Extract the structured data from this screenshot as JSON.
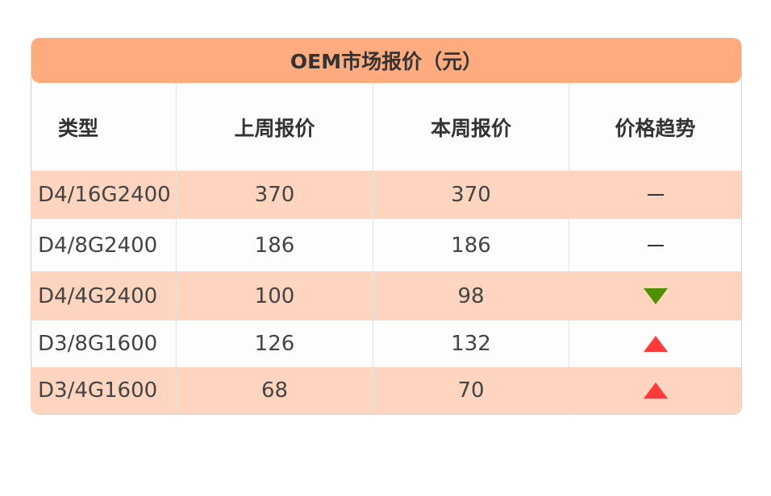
{
  "table": {
    "title": "OEM市场报价（元）",
    "headers": [
      "类型",
      "上周报价",
      "本周报价",
      "价格趋势"
    ],
    "rows": [
      {
        "type": "D4/16G2400",
        "last_week": "370",
        "this_week": "370",
        "trend": "flat"
      },
      {
        "type": "D4/8G2400",
        "last_week": "186",
        "this_week": "186",
        "trend": "flat"
      },
      {
        "type": "D4/4G2400",
        "last_week": "100",
        "this_week": "98",
        "trend": "down"
      },
      {
        "type": "D3/8G1600",
        "last_week": "126",
        "this_week": "132",
        "trend": "up"
      },
      {
        "type": "D3/4G1600",
        "last_week": "68",
        "this_week": "70",
        "trend": "up"
      }
    ]
  },
  "colors": {
    "title_bg": "#ffab80",
    "row_alt_bg": "#ffd5bf",
    "up": "#ff3a3a",
    "down": "#4f8f00"
  }
}
